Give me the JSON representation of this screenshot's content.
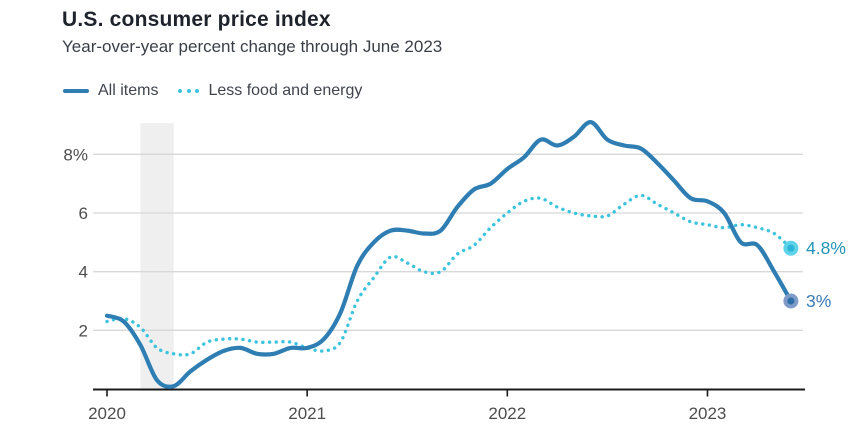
{
  "header": {
    "title": "U.S. consumer price index",
    "subtitle": "Year-over-year percent change through June 2023"
  },
  "legend": {
    "items": [
      {
        "label": "All items",
        "swatch": "solid-line"
      },
      {
        "label": "Less food and energy",
        "swatch": "dotted-line"
      }
    ]
  },
  "colors": {
    "all_items_line": "#2e7eb3",
    "core_line": "#3cc4de",
    "gridline": "#d8d8d8",
    "recession_band": "#efefef",
    "axis": "#1b1b1b",
    "tick_label": "#4d4d4d",
    "all_items_end_label": "#3b79b5",
    "core_end_label": "#2195b8"
  },
  "chart_data": {
    "type": "line",
    "title": "U.S. consumer price index",
    "subtitle": "Year-over-year percent change through June 2023",
    "x_start": "2020-01",
    "x_end": "2023-06",
    "x_tick_labels": [
      "2020",
      "2021",
      "2022",
      "2023"
    ],
    "x_tick_month_indices": [
      0,
      12,
      24,
      36
    ],
    "y_ticks": [
      {
        "value": 2,
        "label": "2"
      },
      {
        "value": 4,
        "label": "4"
      },
      {
        "value": 6,
        "label": "6"
      },
      {
        "value": 8,
        "label": "8%"
      }
    ],
    "ylim": [
      0,
      9.4
    ],
    "grid": "horizontal-only",
    "legend_position": "top-left",
    "recession_band_months": [
      2,
      4
    ],
    "series": [
      {
        "name": "Less food and energy",
        "style": "dotted",
        "color": "#3cc4de",
        "end_label": "4.8%",
        "end_label_color": "#2195b8",
        "dot_outer": "#5ed2ea",
        "dot_inner": "#2bb5d6",
        "values": [
          2.3,
          2.4,
          2.1,
          1.4,
          1.2,
          1.2,
          1.6,
          1.7,
          1.7,
          1.6,
          1.6,
          1.6,
          1.4,
          1.3,
          1.6,
          3.0,
          3.8,
          4.5,
          4.3,
          4.0,
          4.0,
          4.6,
          4.9,
          5.5,
          6.0,
          6.4,
          6.5,
          6.2,
          6.0,
          5.9,
          5.9,
          6.3,
          6.6,
          6.3,
          6.0,
          5.7,
          5.6,
          5.5,
          5.6,
          5.5,
          5.3,
          4.8
        ]
      },
      {
        "name": "All items",
        "style": "solid",
        "color": "#2e7eb3",
        "end_label": "3%",
        "end_label_color": "#3b79b5",
        "dot_outer": "#7f9cc9",
        "dot_inner": "#2e6fa9",
        "values": [
          2.5,
          2.3,
          1.5,
          0.3,
          0.1,
          0.6,
          1.0,
          1.3,
          1.4,
          1.2,
          1.2,
          1.4,
          1.4,
          1.7,
          2.6,
          4.2,
          5.0,
          5.4,
          5.4,
          5.3,
          5.4,
          6.2,
          6.8,
          7.0,
          7.5,
          7.9,
          8.5,
          8.3,
          8.6,
          9.1,
          8.5,
          8.3,
          8.2,
          7.7,
          7.1,
          6.5,
          6.4,
          6.0,
          5.0,
          4.9,
          4.0,
          3.0
        ]
      }
    ]
  }
}
